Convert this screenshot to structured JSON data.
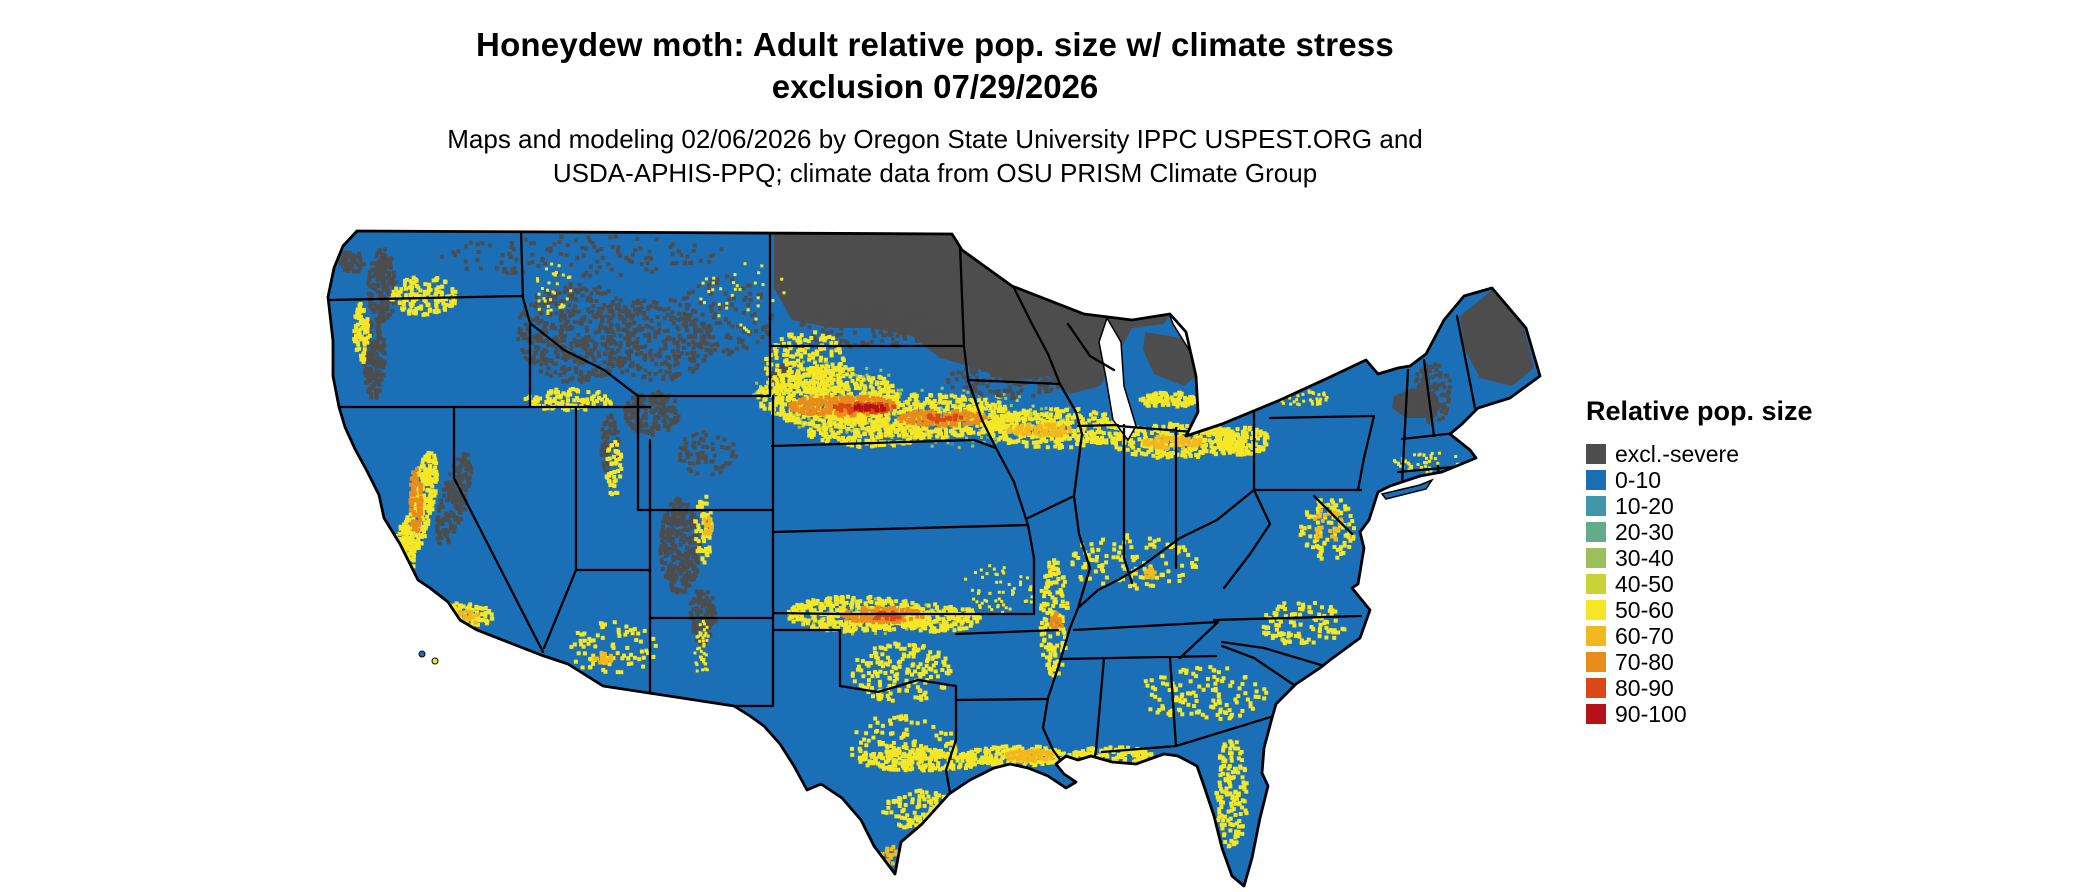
{
  "title": {
    "line1": "Honeydew moth: Adult relative pop. size w/ climate stress",
    "line2": "exclusion 07/29/2026"
  },
  "subtitle": {
    "line1": "Maps and modeling 02/06/2026 by Oregon State University IPPC USPEST.ORG and",
    "line2": "USDA-APHIS-PPQ; climate data from OSU PRISM Climate Group"
  },
  "legend": {
    "title": "Relative pop. size",
    "items": [
      {
        "label": "excl.-severe",
        "color": "#4d4d4d"
      },
      {
        "label": "0-10",
        "color": "#1b6fb7"
      },
      {
        "label": "10-20",
        "color": "#3f96a8"
      },
      {
        "label": "20-30",
        "color": "#63ab8b"
      },
      {
        "label": "30-40",
        "color": "#9dc05c"
      },
      {
        "label": "40-50",
        "color": "#c9d338"
      },
      {
        "label": "50-60",
        "color": "#f5e626"
      },
      {
        "label": "60-70",
        "color": "#f2b81f"
      },
      {
        "label": "70-80",
        "color": "#ea8c1c"
      },
      {
        "label": "80-90",
        "color": "#d94815"
      },
      {
        "label": "90-100",
        "color": "#b51117"
      }
    ]
  },
  "map": {
    "palette": {
      "base": "#1b6fb7",
      "exclusion": "#4d4d4d",
      "teal": "#3f96a8",
      "green_teal": "#63ab8b",
      "green": "#9dc05c",
      "yellow_green": "#c9d338",
      "yellow": "#f5e626",
      "amber": "#f2b81f",
      "orange": "#ea8c1c",
      "red_orange": "#d94815",
      "red": "#b51117",
      "lake": "#ffffff",
      "border": "#000000"
    }
  }
}
